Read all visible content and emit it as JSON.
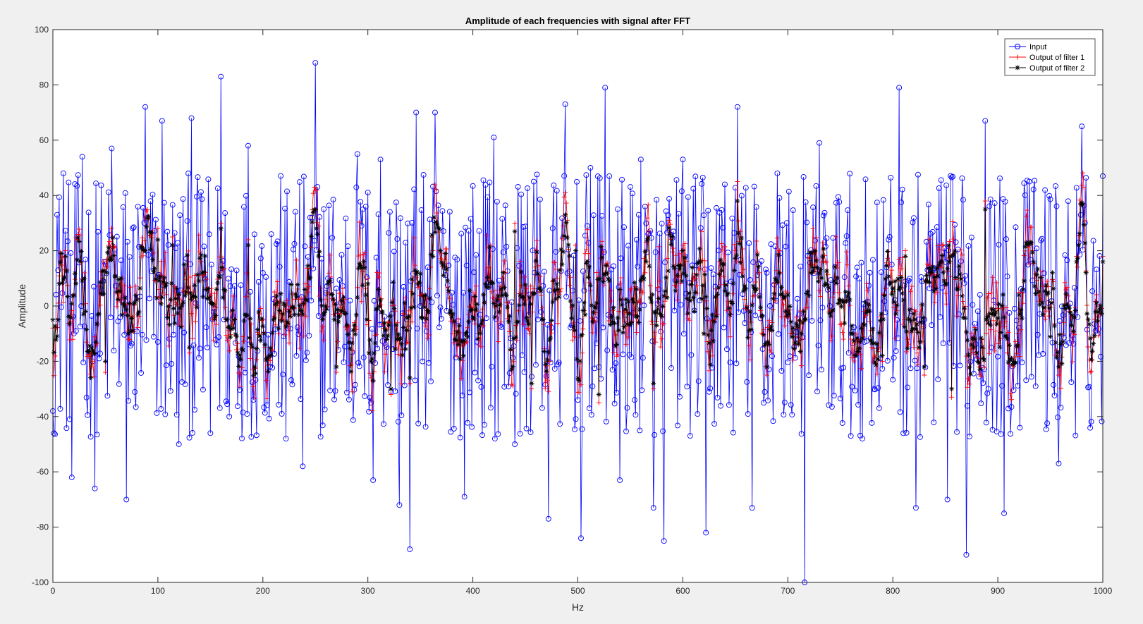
{
  "chart_data": {
    "type": "line",
    "title": "Amplitude of each frequencies with signal after FFT",
    "xlabel": "Hz",
    "ylabel": "Amplitude",
    "xlim": [
      0,
      1000
    ],
    "ylim": [
      -100,
      100
    ],
    "xticks": [
      0,
      100,
      200,
      300,
      400,
      500,
      600,
      700,
      800,
      900,
      1000
    ],
    "yticks": [
      -100,
      -80,
      -60,
      -40,
      -20,
      0,
      20,
      40,
      60,
      80,
      100
    ],
    "xtick_labels": [
      "0",
      "100",
      "200",
      "300",
      "400",
      "500",
      "600",
      "700",
      "800",
      "900",
      "1000"
    ],
    "ytick_labels": [
      "-100",
      "-80",
      "-60",
      "-40",
      "-20",
      "0",
      "20",
      "40",
      "60",
      "80",
      "100"
    ],
    "grid": false,
    "legend_position": "top-right",
    "n_points": 1001,
    "x_step": 1,
    "series": [
      {
        "name": "Input",
        "color": "#0000ff",
        "marker": "circle",
        "x": [
          0,
          4,
          10,
          18,
          28,
          40,
          48,
          56,
          70,
          88,
          100,
          104,
          120,
          132,
          150,
          160,
          168,
          186,
          200,
          222,
          238,
          250,
          262,
          290,
          305,
          312,
          330,
          340,
          346,
          350,
          364,
          392,
          420,
          440,
          458,
          472,
          488,
          503,
          512,
          526,
          540,
          560,
          572,
          582,
          600,
          622,
          640,
          652,
          666,
          690,
          716,
          730,
          760,
          806,
          822,
          852,
          870,
          888,
          906,
          930,
          958,
          980,
          1000
        ],
        "values": [
          -38,
          33,
          48,
          -62,
          54,
          -66,
          9,
          57,
          -70,
          72,
          -13,
          67,
          -50,
          68,
          -46,
          83,
          -40,
          58,
          12,
          -48,
          -58,
          88,
          10,
          55,
          -63,
          53,
          -72,
          -88,
          70,
          0,
          70,
          -69,
          61,
          -50,
          45,
          -77,
          73,
          -84,
          50,
          79,
          -63,
          53,
          -73,
          -85,
          53,
          -82,
          44,
          72,
          -73,
          48,
          -100,
          59,
          -47,
          79,
          -73,
          -70,
          -90,
          67,
          -75,
          45,
          -57,
          65,
          47
        ]
      },
      {
        "name": "Output of filter 1",
        "color": "#ff0000",
        "marker": "plus",
        "x": [
          0,
          12,
          30,
          50,
          72,
          100,
          114,
          130,
          160,
          186,
          215,
          240,
          270,
          300,
          322,
          340,
          362,
          400,
          440,
          456,
          480,
          498,
          520,
          540,
          572,
          600,
          620,
          652,
          680,
          700,
          722,
          760,
          790,
          812,
          830,
          856,
          888,
          920,
          958,
          975,
          1000
        ],
        "values": [
          -8,
          20,
          12,
          -24,
          -12,
          28,
          25,
          -17,
          30,
          24,
          -10,
          8,
          -24,
          10,
          -32,
          -28,
          20,
          -5,
          30,
          -30,
          10,
          22,
          -35,
          8,
          -30,
          22,
          -10,
          45,
          -25,
          5,
          15,
          -12,
          -20,
          20,
          -25,
          -33,
          38,
          5,
          -25,
          18,
          18
        ]
      },
      {
        "name": "Output of filter 2",
        "color": "#000000",
        "marker": "star",
        "x": [
          0,
          12,
          30,
          50,
          72,
          100,
          114,
          130,
          160,
          186,
          215,
          240,
          270,
          300,
          322,
          340,
          362,
          400,
          440,
          456,
          480,
          498,
          520,
          540,
          572,
          600,
          620,
          652,
          680,
          700,
          722,
          760,
          790,
          812,
          830,
          856,
          888,
          920,
          958,
          975,
          1000
        ],
        "values": [
          -5,
          18,
          10,
          -20,
          -10,
          24,
          22,
          -15,
          28,
          22,
          -8,
          6,
          -22,
          8,
          -30,
          -26,
          18,
          -4,
          27,
          -28,
          8,
          20,
          -32,
          6,
          -28,
          20,
          -10,
          38,
          -22,
          4,
          12,
          -10,
          -18,
          18,
          -22,
          -30,
          35,
          4,
          -22,
          16,
          16
        ]
      }
    ]
  }
}
